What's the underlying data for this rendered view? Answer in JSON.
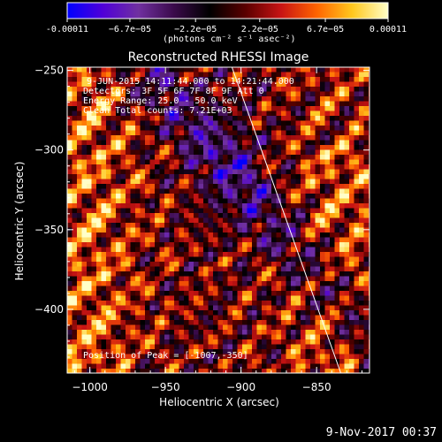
{
  "chart_data": {
    "type": "heatmap",
    "title": "Reconstructed RHESSI Image",
    "xlabel": "Heliocentric X (arcsec)",
    "ylabel": "Heliocentric Y (arcsec)",
    "xlim": [
      -1015,
      -815
    ],
    "ylim": [
      -440,
      -248
    ],
    "x_ticks": [
      -1000,
      -950,
      -900,
      -850
    ],
    "x_tick_labels": [
      "−1000",
      "−950",
      "−900",
      "−850"
    ],
    "y_ticks": [
      -250,
      -300,
      -350,
      -400
    ],
    "y_tick_labels": [
      "−250",
      "−300",
      "−350",
      "−400"
    ],
    "colorbar": {
      "min": -0.00011,
      "max": 0.00011,
      "tick_values": [
        -0.00011,
        -6.7e-05,
        -2.2e-05,
        2.2e-05,
        6.7e-05,
        0.00011
      ],
      "tick_labels": [
        "-0.00011",
        "−6.7e−05",
        "−2.2e−05",
        "2.2e−05",
        "6.7e−05",
        "0.00011"
      ],
      "unit_label": "(photons cm⁻² s⁻¹ asec⁻²)",
      "palette": [
        "#0000ff",
        "#5000d8",
        "#7030a0",
        "#3a0a4a",
        "#000000",
        "#5a0000",
        "#c81414",
        "#ff6400",
        "#ffc81e",
        "#ffffc8"
      ]
    },
    "annotations": [
      "9-JUN-2015 14:11:44.000 to 14:21:44.000",
      "Detectors: 3F 5F 6F 7F 8F 9F  Att 0",
      "Energy Range: 25.0 - 50.0 keV",
      "Clean    Total counts: 7.21E+03",
      "Position of Peak = [-1007,-350]"
    ],
    "limb": [
      [
        -906,
        -248
      ],
      [
        -834,
        -440
      ]
    ],
    "grid": false
  },
  "footer_date": "9-Nov-2017 00:37"
}
